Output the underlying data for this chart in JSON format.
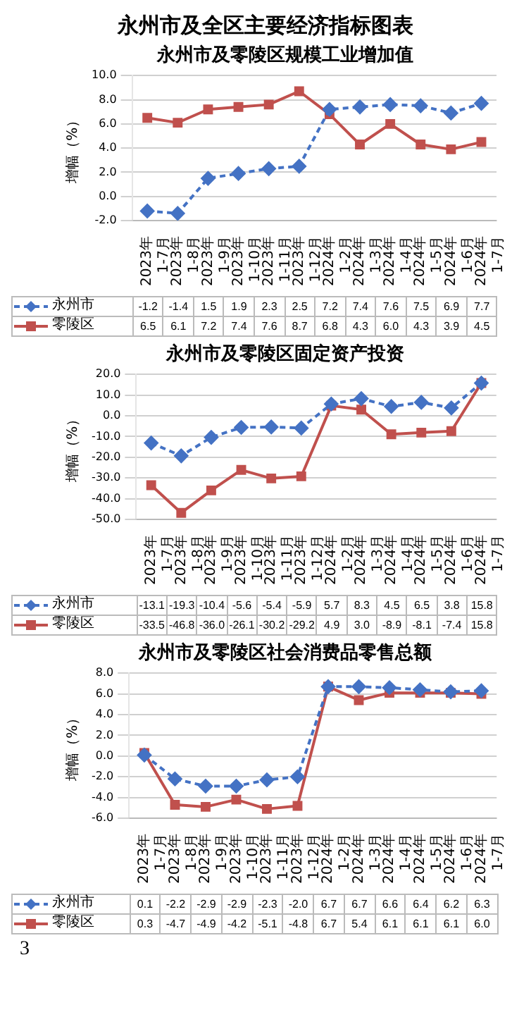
{
  "chart_data": [
    {
      "type": "other",
      "title": "永州市及全区主要经济指标图表"
    },
    {
      "type": "line",
      "title": "永州市及零陵区规模工业增加值",
      "ylabel": "增幅（%）",
      "categories": [
        "2023年 1-7月",
        "2023年 1-8月",
        "2023年 1-9月",
        "2023年 1-10月",
        "2023年 1-11月",
        "2023年 1-12月",
        "2024年 1-2月",
        "2024年 1-3月",
        "2024年 1-4月",
        "2024年 1-5月",
        "2024年 1-6月",
        "2024年 1-7月"
      ],
      "series": [
        {
          "name": "永州市",
          "color": "#4472c4",
          "marker": "diamond",
          "line_style": "dashed",
          "values": [
            -1.2,
            -1.4,
            1.5,
            1.9,
            2.3,
            2.5,
            7.2,
            7.4,
            7.6,
            7.5,
            6.9,
            7.7
          ],
          "value_labels": [
            "-1.2",
            "-1.4",
            "1.5",
            "1.9",
            "2.3",
            "2.5",
            "7.2",
            "7.4",
            "7.6",
            "7.5",
            "6.9",
            "7.7"
          ]
        },
        {
          "name": "零陵区",
          "color": "#c0504d",
          "marker": "square",
          "line_style": "solid",
          "values": [
            6.5,
            6.1,
            7.2,
            7.4,
            7.6,
            8.7,
            6.8,
            4.3,
            6.0,
            4.3,
            3.9,
            4.5
          ],
          "value_labels": [
            "6.5",
            "6.1",
            "7.2",
            "7.4",
            "7.6",
            "8.7",
            "6.8",
            "4.3",
            "6.0",
            "4.3",
            "3.9",
            "4.5"
          ]
        }
      ],
      "ylim": [
        -2,
        10
      ],
      "yticks": [
        {
          "value": -2,
          "label": "-2.0"
        },
        {
          "value": 0,
          "label": "0.0"
        },
        {
          "value": 2,
          "label": "2.0"
        },
        {
          "value": 4,
          "label": "4.0"
        },
        {
          "value": 6,
          "label": "6.0"
        },
        {
          "value": 8,
          "label": "8.0"
        },
        {
          "value": 10,
          "label": "10.0"
        }
      ],
      "grid": "y",
      "legend": "bottom"
    },
    {
      "type": "line",
      "title": "永州市及零陵区固定资产投资",
      "ylabel": "增幅（%）",
      "categories": [
        "2023年 1-7月",
        "2023年 1-8月",
        "2023年 1-9月",
        "2023年 1-10月",
        "2023年 1-11月",
        "2023年 1-12月",
        "2024年 1-2月",
        "2024年 1-3月",
        "2024年 1-4月",
        "2024年 1-5月",
        "2024年 1-6月",
        "2024年 1-7月"
      ],
      "series": [
        {
          "name": "永州市",
          "color": "#4472c4",
          "marker": "diamond",
          "line_style": "dashed",
          "values": [
            -13.1,
            -19.3,
            -10.4,
            -5.6,
            -5.4,
            -5.9,
            5.7,
            8.3,
            4.5,
            6.5,
            3.8,
            15.8
          ],
          "value_labels": [
            "-13.1",
            "-19.3",
            "-10.4",
            "-5.6",
            "-5.4",
            "-5.9",
            "5.7",
            "8.3",
            "4.5",
            "6.5",
            "3.8",
            "15.8"
          ]
        },
        {
          "name": "零陵区",
          "color": "#c0504d",
          "marker": "square",
          "line_style": "solid",
          "values": [
            -33.5,
            -46.8,
            -36.0,
            -26.1,
            -30.2,
            -29.2,
            4.9,
            3.0,
            -8.9,
            -8.1,
            -7.4,
            15.8
          ],
          "value_labels": [
            "-33.5",
            "-46.8",
            "-36.0",
            "-26.1",
            "-30.2",
            "-29.2",
            "4.9",
            "3.0",
            "-8.9",
            "-8.1",
            "-7.4",
            "15.8"
          ]
        }
      ],
      "ylim": [
        -50,
        20
      ],
      "yticks": [
        {
          "value": -50,
          "label": "-50.0"
        },
        {
          "value": -40,
          "label": "-40.0"
        },
        {
          "value": -30,
          "label": "-30.0"
        },
        {
          "value": -20,
          "label": "-20.0"
        },
        {
          "value": -10,
          "label": "-10.0"
        },
        {
          "value": 0,
          "label": "0.0"
        },
        {
          "value": 10,
          "label": "10.0"
        },
        {
          "value": 20,
          "label": "20.0"
        }
      ],
      "grid": "y",
      "legend": "bottom"
    },
    {
      "type": "line",
      "title": "永州市及零陵区社会消费品零售总额",
      "ylabel": "增幅（%）",
      "categories": [
        "2023年 1-7月",
        "2023年 1-8月",
        "2023年 1-9月",
        "2023年 1-10月",
        "2023年 1-11月",
        "2023年 1-12月",
        "2024年 1-2月",
        "2024年 1-3月",
        "2024年 1-4月",
        "2024年 1-5月",
        "2024年 1-6月",
        "2024年 1-7月"
      ],
      "series": [
        {
          "name": "永州市",
          "color": "#4472c4",
          "marker": "diamond",
          "line_style": "dashed",
          "values": [
            0.1,
            -2.2,
            -2.9,
            -2.9,
            -2.3,
            -2.0,
            6.7,
            6.7,
            6.6,
            6.4,
            6.2,
            6.3
          ],
          "value_labels": [
            "0.1",
            "-2.2",
            "-2.9",
            "-2.9",
            "-2.3",
            "-2.0",
            "6.7",
            "6.7",
            "6.6",
            "6.4",
            "6.2",
            "6.3"
          ]
        },
        {
          "name": "零陵区",
          "color": "#c0504d",
          "marker": "square",
          "line_style": "solid",
          "values": [
            0.3,
            -4.7,
            -4.9,
            -4.2,
            -5.1,
            -4.8,
            6.7,
            5.4,
            6.1,
            6.1,
            6.1,
            6.0
          ],
          "value_labels": [
            "0.3",
            "-4.7",
            "-4.9",
            "-4.2",
            "-5.1",
            "-4.8",
            "6.7",
            "5.4",
            "6.1",
            "6.1",
            "6.1",
            "6.0"
          ]
        }
      ],
      "ylim": [
        -6,
        8
      ],
      "yticks": [
        {
          "value": -6,
          "label": "-6.0"
        },
        {
          "value": -4,
          "label": "-4.0"
        },
        {
          "value": -2,
          "label": "-2.0"
        },
        {
          "value": 0,
          "label": "0.0"
        },
        {
          "value": 2,
          "label": "2.0"
        },
        {
          "value": 4,
          "label": "4.0"
        },
        {
          "value": 6,
          "label": "6.0"
        },
        {
          "value": 8,
          "label": "8.0"
        }
      ],
      "grid": "y",
      "legend": "bottom"
    },
    {
      "type": "other",
      "annotations": [
        "3"
      ]
    }
  ]
}
